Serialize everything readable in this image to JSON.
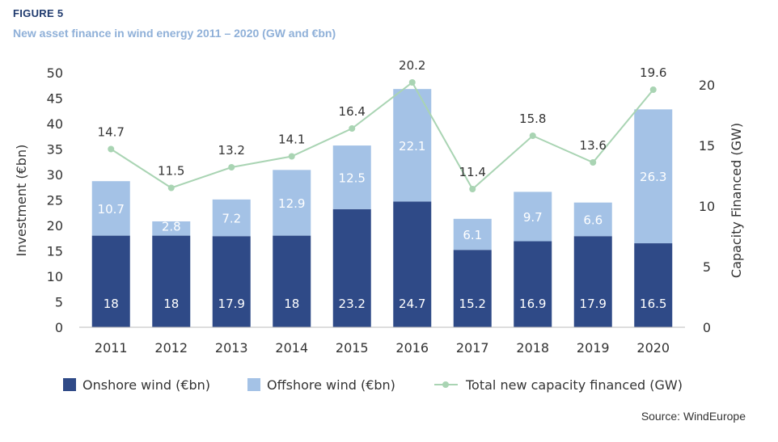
{
  "figure_label": "FIGURE 5",
  "title": "New asset finance in wind energy 2011 – 2020 (GW and €bn)",
  "source": "Source: WindEurope",
  "colors": {
    "onshore": "#2f4a87",
    "offshore": "#a4c2e6",
    "line": "#a9d4b3"
  },
  "chart_data": {
    "type": "bar",
    "stacked": true,
    "categories": [
      "2011",
      "2012",
      "2013",
      "2014",
      "2015",
      "2016",
      "2017",
      "2018",
      "2019",
      "2020"
    ],
    "series": [
      {
        "name": "Onshore wind (€bn)",
        "values": [
          18,
          18,
          17.9,
          18,
          23.2,
          24.7,
          15.2,
          16.9,
          17.9,
          16.5
        ]
      },
      {
        "name": "Offshore wind (€bn)",
        "values": [
          10.7,
          2.8,
          7.2,
          12.9,
          12.5,
          22.1,
          6.1,
          9.7,
          6.6,
          26.3
        ]
      }
    ],
    "line_series": {
      "name": "Total new capacity financed (GW)",
      "axis": "right",
      "values": [
        14.7,
        11.5,
        13.2,
        14.1,
        16.4,
        20.2,
        11.4,
        15.8,
        13.6,
        19.6
      ]
    },
    "ylabel": "Investment (€bn)",
    "y2label": "Capacity Financed (GW)",
    "ylim": [
      0,
      50
    ],
    "y2lim": [
      0,
      21
    ],
    "yticks": [
      0,
      5,
      10,
      15,
      20,
      25,
      30,
      35,
      40,
      45,
      50
    ],
    "y2ticks": [
      0,
      5,
      10,
      15,
      20
    ],
    "legend_position": "bottom",
    "grid": false
  }
}
